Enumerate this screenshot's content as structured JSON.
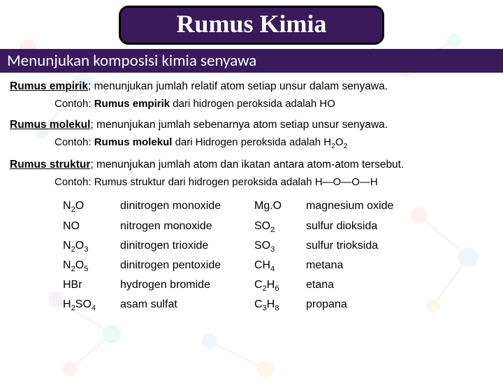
{
  "title": "Rumus Kimia",
  "subtitle": "Menunjukan komposisi kimia senyawa",
  "definitions": [
    {
      "term": "Rumus empirik",
      "desc": "; menunjukan jumlah relatif atom setiap unsur dalam senyawa.",
      "example_prefix": "Contoh: ",
      "example_bold": "Rumus empirik",
      "example_rest": " dari hidrogen peroksida adalah HO"
    },
    {
      "term": "Rumus molekul",
      "desc": "; menunjukan jumlah sebenarnya atom setiap unsur senyawa.",
      "example_prefix": "Contoh: ",
      "example_bold": "Rumus molekul",
      "example_rest_html": " dari Hidrogen peroksida adalah H<sub>2</sub>O<sub>2</sub>"
    },
    {
      "term": "Rumus struktur",
      "desc": "; menunjukan jumlah atom dan ikatan antara atom-atom tersebut.",
      "example_prefix": "Contoh: ",
      "example_bold": "",
      "example_rest": "Rumus struktur dari hidrogen peroksida adalah H—O—O—H"
    }
  ],
  "compounds_left": [
    {
      "formula": "N<sub>2</sub>O",
      "name": "dinitrogen monoxide"
    },
    {
      "formula": "NO",
      "name": "nitrogen monoxide"
    },
    {
      "formula": "N<sub>2</sub>O<sub>3</sub>",
      "name": "dinitrogen trioxide"
    },
    {
      "formula": "N<sub>2</sub>O<sub>5</sub>",
      "name": "dinitrogen pentoxide"
    },
    {
      "formula": "HBr",
      "name": "hydrogen bromide"
    },
    {
      "formula": "H<sub>2</sub>SO<sub>4</sub>",
      "name": "asam sulfat"
    }
  ],
  "compounds_right": [
    {
      "formula": "Mg.O",
      "name": "magnesium oxide"
    },
    {
      "formula": "SO<sub>2</sub>",
      "name": "sulfur dioksida"
    },
    {
      "formula": "SO<sub>3</sub>",
      "name": "sulfur trioksida"
    },
    {
      "formula": "CH<sub>4</sub>",
      "name": "metana"
    },
    {
      "formula": "C<sub>2</sub>H<sub>6</sub>",
      "name": "etana"
    },
    {
      "formula": "C<sub>3</sub>H<sub>8</sub>",
      "name": "propana"
    }
  ],
  "colors": {
    "panel": "#3b1a5c",
    "text": "#000000",
    "bg": "#ffffff"
  }
}
